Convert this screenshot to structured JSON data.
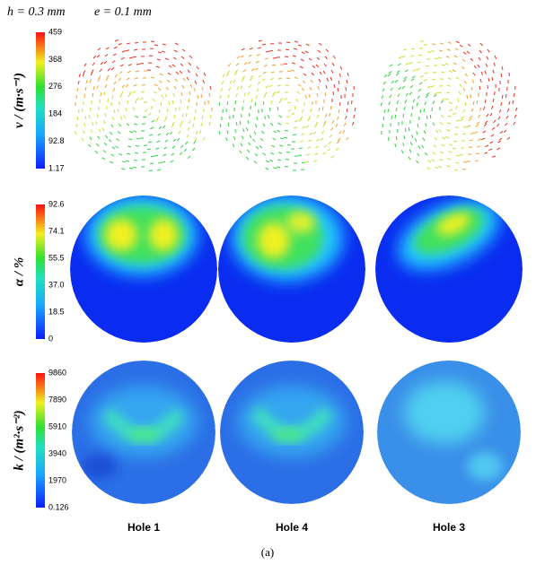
{
  "header": [
    "h = 0.3 mm",
    "e = 0.1 mm"
  ],
  "rows": [
    {
      "label": "v / (m·s⁻¹)",
      "ticks": [
        "459",
        "368",
        "276",
        "184",
        "92.8",
        "1.17"
      ]
    },
    {
      "label": "α / %",
      "ticks": [
        "92.6",
        "74.1",
        "55.5",
        "37.0",
        "18.5",
        "0"
      ]
    },
    {
      "label": "k / (m²·s⁻²)",
      "ticks": [
        "9860",
        "7890",
        "5910",
        "3940",
        "1970",
        "0.126"
      ]
    }
  ],
  "columns": [
    "Hole 1",
    "Hole 4",
    "Hole 3"
  ],
  "caption": "(a)"
}
